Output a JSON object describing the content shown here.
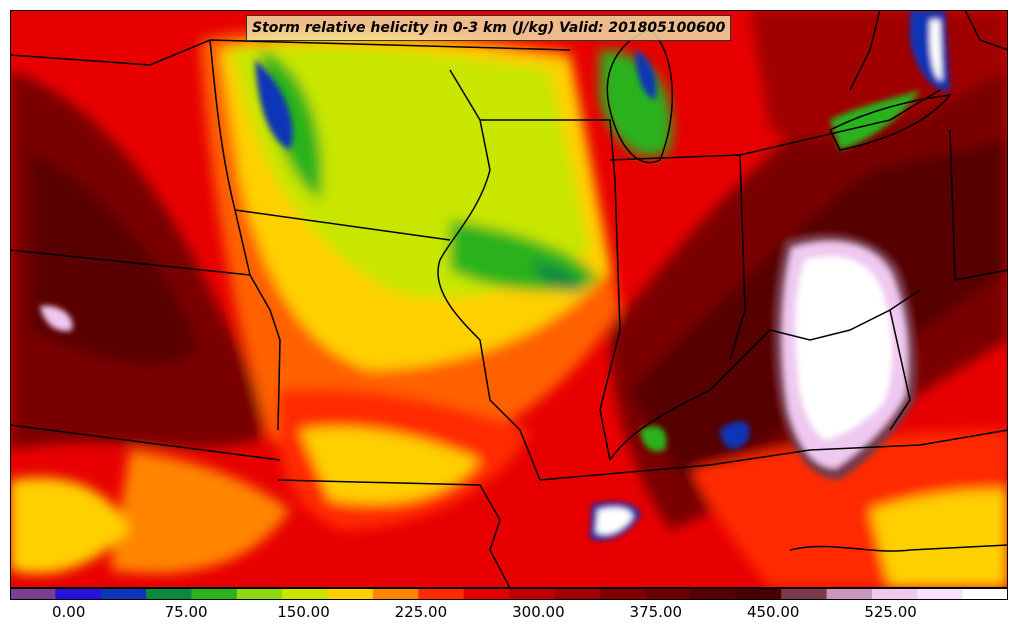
{
  "title": "Storm relative helicity in 0-3 km (J/kg) Valid: 201805100600",
  "colorbar": {
    "colors": [
      "#7b3f8f",
      "#2a10dd",
      "#1034b8",
      "#0c8a3c",
      "#2cb21c",
      "#90d814",
      "#c8e600",
      "#ffd000",
      "#ff8400",
      "#ff2a00",
      "#e30000",
      "#c00000",
      "#a00000",
      "#800000",
      "#6a0000",
      "#560000",
      "#4a0000",
      "#7a3a4a",
      "#c896c0",
      "#f0c8f0",
      "#fbe0fb",
      "#ffffff"
    ],
    "tick_labels": [
      "0.00",
      "75.00",
      "150.00",
      "225.00",
      "300.00",
      "375.00",
      "450.00",
      "525.00"
    ],
    "tick_values": [
      0,
      75,
      150,
      225,
      300,
      375,
      450,
      525
    ],
    "min": -37.5,
    "max": 600
  }
}
